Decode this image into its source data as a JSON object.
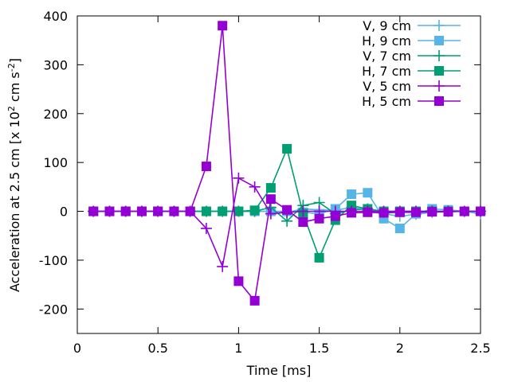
{
  "chart_data": {
    "type": "line",
    "title": "",
    "xlabel": "Time [ms]",
    "ylabel": "Acceleration at 2.5 cm [x 10",
    "ylabel_sup1": "2",
    "ylabel_mid": " cm s",
    "ylabel_sup2": "-2",
    "ylabel_end": "]",
    "xlim": [
      0,
      2.5
    ],
    "ylim": [
      -250,
      400
    ],
    "x_ticks": [
      0,
      0.5,
      1,
      1.5,
      2,
      2.5
    ],
    "x_tick_labels": [
      "0",
      "0.5",
      "1",
      "1.5",
      "2",
      "2.5"
    ],
    "y_ticks": [
      400,
      300,
      200,
      100,
      0,
      -100,
      -200
    ],
    "y_tick_labels": [
      "400",
      "300",
      "200",
      "100",
      "0",
      "-100",
      "-200"
    ],
    "legend_position": "top-right",
    "x": [
      0.1,
      0.2,
      0.3,
      0.4,
      0.5,
      0.6,
      0.7,
      0.8,
      0.9,
      1.0,
      1.1,
      1.2,
      1.3,
      1.4,
      1.5,
      1.6,
      1.7,
      1.8,
      1.9,
      2.0,
      2.1,
      2.2,
      2.3,
      2.4,
      2.5
    ],
    "series": [
      {
        "name": "V, 9 cm",
        "marker": "plus",
        "color": "#56b4e9",
        "values": [
          0,
          0,
          0,
          0,
          0,
          0,
          0,
          0,
          0,
          0,
          0,
          0,
          -2,
          5,
          3,
          2,
          8,
          3,
          -5,
          -10,
          -6,
          -2,
          0,
          0,
          -5
        ]
      },
      {
        "name": "H, 9 cm",
        "marker": "square",
        "color": "#56b4e9",
        "values": [
          0,
          0,
          0,
          0,
          0,
          0,
          0,
          0,
          0,
          0,
          0,
          0,
          0,
          -2,
          -5,
          5,
          35,
          38,
          -15,
          -35,
          -5,
          5,
          3,
          0,
          0
        ]
      },
      {
        "name": "V, 7 cm",
        "marker": "plus",
        "color": "#009e73",
        "values": [
          0,
          0,
          0,
          0,
          0,
          0,
          0,
          0,
          0,
          0,
          0,
          8,
          -20,
          12,
          18,
          -5,
          3,
          5,
          -2,
          0,
          0,
          0,
          0,
          0,
          0
        ]
      },
      {
        "name": "H, 7 cm",
        "marker": "square",
        "color": "#009e73",
        "values": [
          0,
          0,
          0,
          0,
          0,
          0,
          0,
          0,
          0,
          0,
          2,
          48,
          128,
          -5,
          -95,
          -18,
          12,
          5,
          0,
          0,
          0,
          0,
          0,
          0,
          0
        ]
      },
      {
        "name": "V, 5 cm",
        "marker": "plus",
        "color": "#9400d3",
        "values": [
          0,
          0,
          0,
          0,
          0,
          0,
          0,
          -35,
          -113,
          68,
          50,
          -5,
          -2,
          0,
          0,
          0,
          0,
          0,
          0,
          0,
          0,
          0,
          0,
          0,
          0
        ]
      },
      {
        "name": "H, 5 cm",
        "marker": "square",
        "color": "#9400d3",
        "values": [
          0,
          0,
          0,
          0,
          0,
          0,
          0,
          92,
          380,
          -143,
          -183,
          25,
          3,
          -22,
          -15,
          -10,
          -3,
          -2,
          -3,
          -2,
          -2,
          -1,
          -1,
          0,
          0
        ]
      }
    ]
  }
}
